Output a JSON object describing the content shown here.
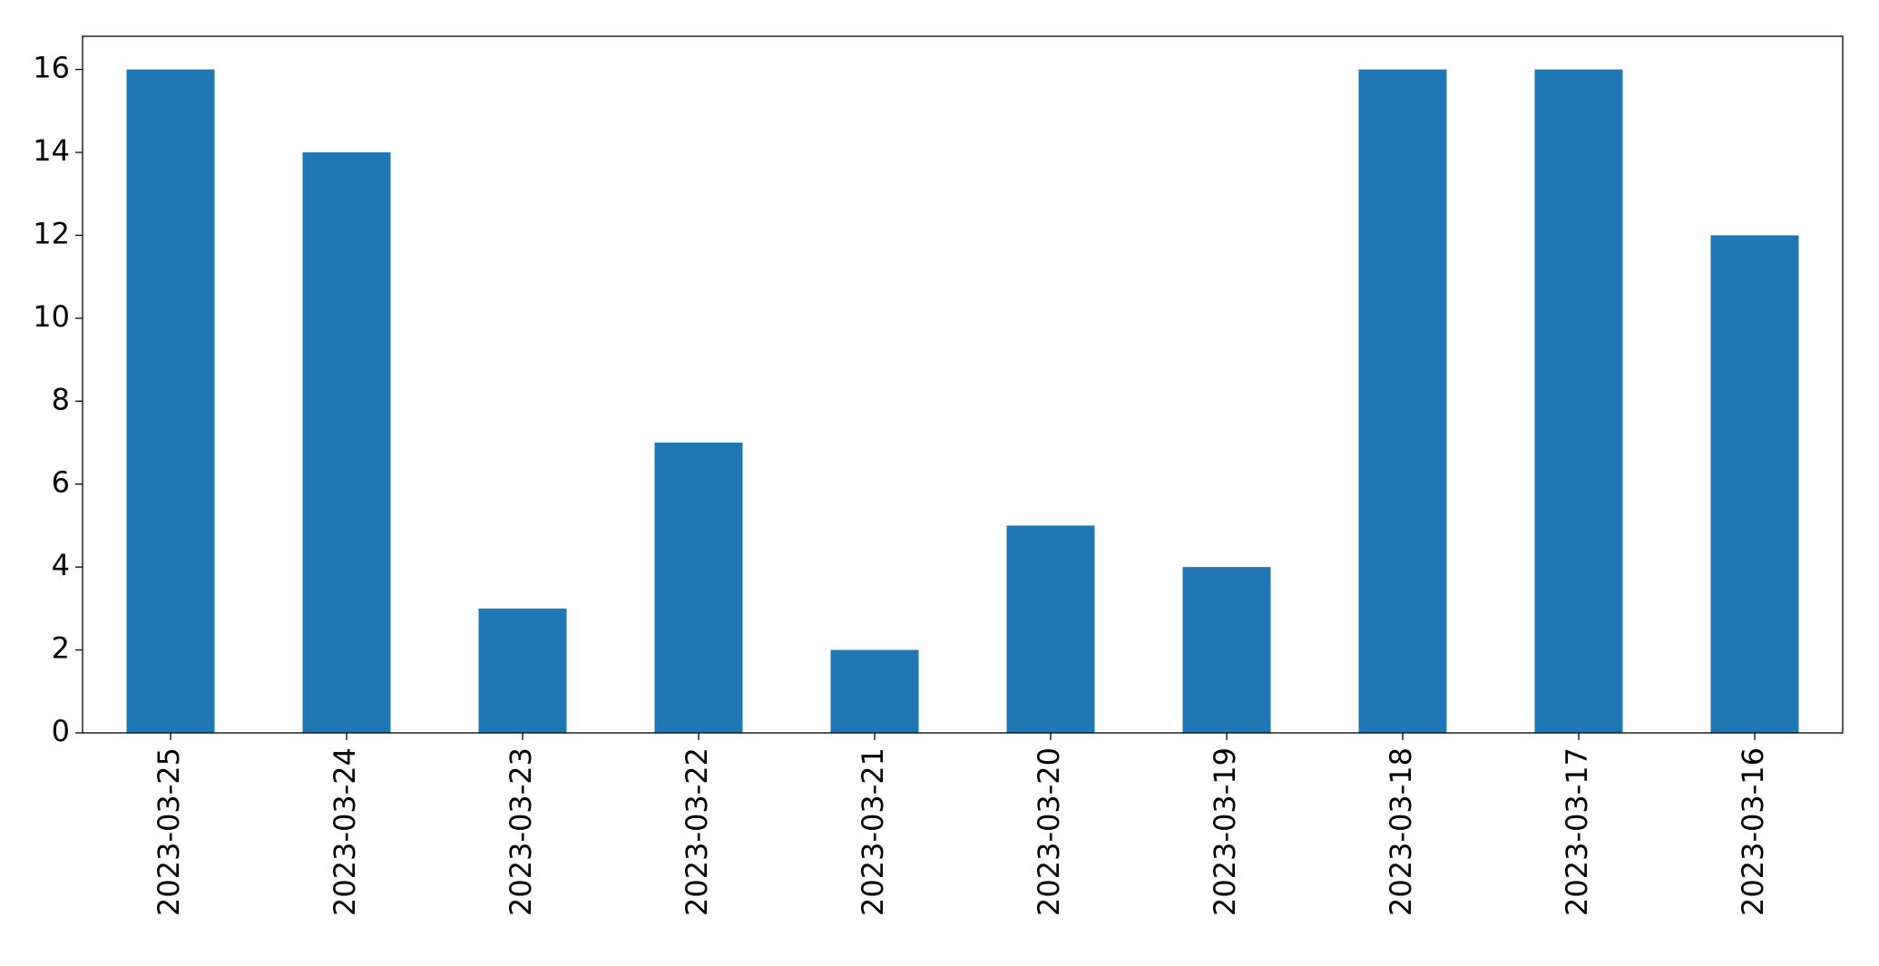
{
  "chart_data": {
    "type": "bar",
    "categories": [
      "2023-03-25",
      "2023-03-24",
      "2023-03-23",
      "2023-03-22",
      "2023-03-21",
      "2023-03-20",
      "2023-03-19",
      "2023-03-18",
      "2023-03-17",
      "2023-03-16"
    ],
    "values": [
      16,
      14,
      3,
      7,
      2,
      5,
      4,
      16,
      16,
      12
    ],
    "color": "#1f77b4",
    "ylim": [
      0,
      16.8
    ],
    "yticks": [
      0,
      2,
      4,
      6,
      8,
      10,
      12,
      14,
      16
    ],
    "grid": false
  }
}
